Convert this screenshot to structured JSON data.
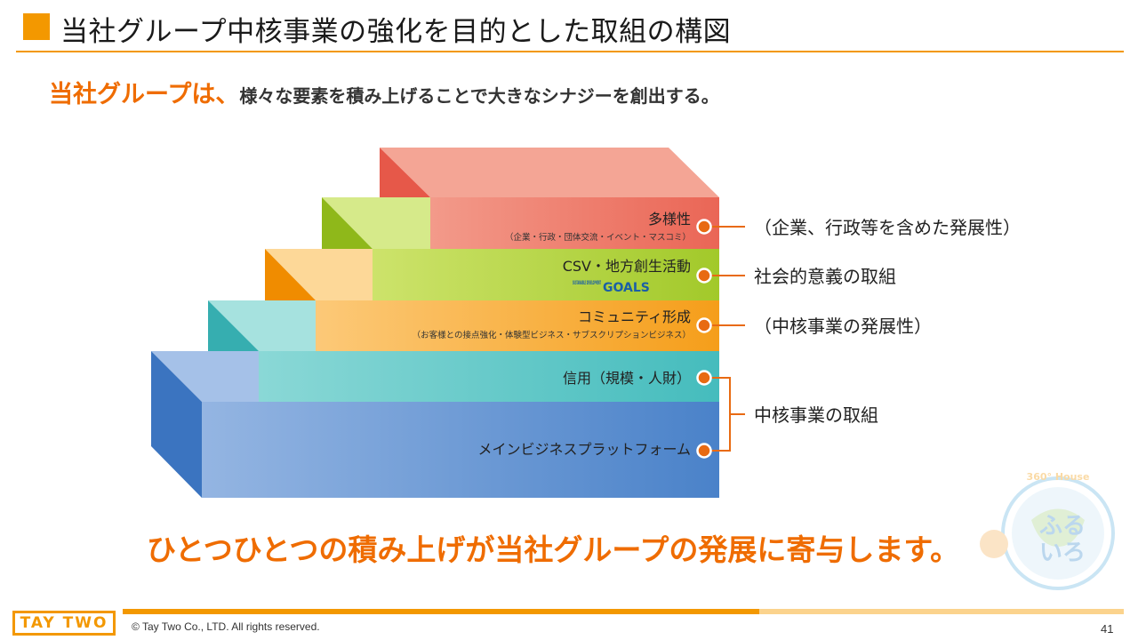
{
  "header": {
    "title": "当社グループ中核事業の強化を目的とした取組の構図"
  },
  "subtitle": {
    "highlight": "当社グループは、",
    "text": "様々な要素を積み上げることで大きなシナジーを創出する。"
  },
  "layers": [
    {
      "label": "多様性",
      "sub": "（企業・行政・団体交流・イベント・マスコミ）",
      "color": "#ee6f5e"
    },
    {
      "label": "CSV・地方創生活動",
      "badge_small": "SUSTAINABLE DEVELOPMENT",
      "badge_big": "GOALS",
      "color": "#a7cc2d"
    },
    {
      "label": "コミュニティ形成",
      "sub": "（お客様との接点強化・体験型ビジネス・サブスクリプションビジネス）",
      "color": "#f7a21c"
    },
    {
      "label": "信用（規模・人財）",
      "color": "#4bbfc0"
    },
    {
      "label": "メインビジネスプラットフォーム",
      "color": "#4f86cc"
    }
  ],
  "annotations": [
    "（企業、行政等を含めた発展性）",
    "社会的意義の取組",
    "（中核事業の発展性）",
    "中核事業の取組"
  ],
  "mascot": {
    "ring_text": "360° House",
    "text_top": "ふる",
    "text_bottom": "いろ"
  },
  "bottom_message": "ひとつひとつの積み上げが当社グループの発展に寄与します。",
  "footer": {
    "logo": "TAY TWO",
    "copyright": "© Tay Two Co., LTD. All rights reserved.",
    "page_number": "41"
  },
  "colors": {
    "accent": "#f39800",
    "highlight_text": "#ef6c00",
    "marker": "#e86a12"
  }
}
